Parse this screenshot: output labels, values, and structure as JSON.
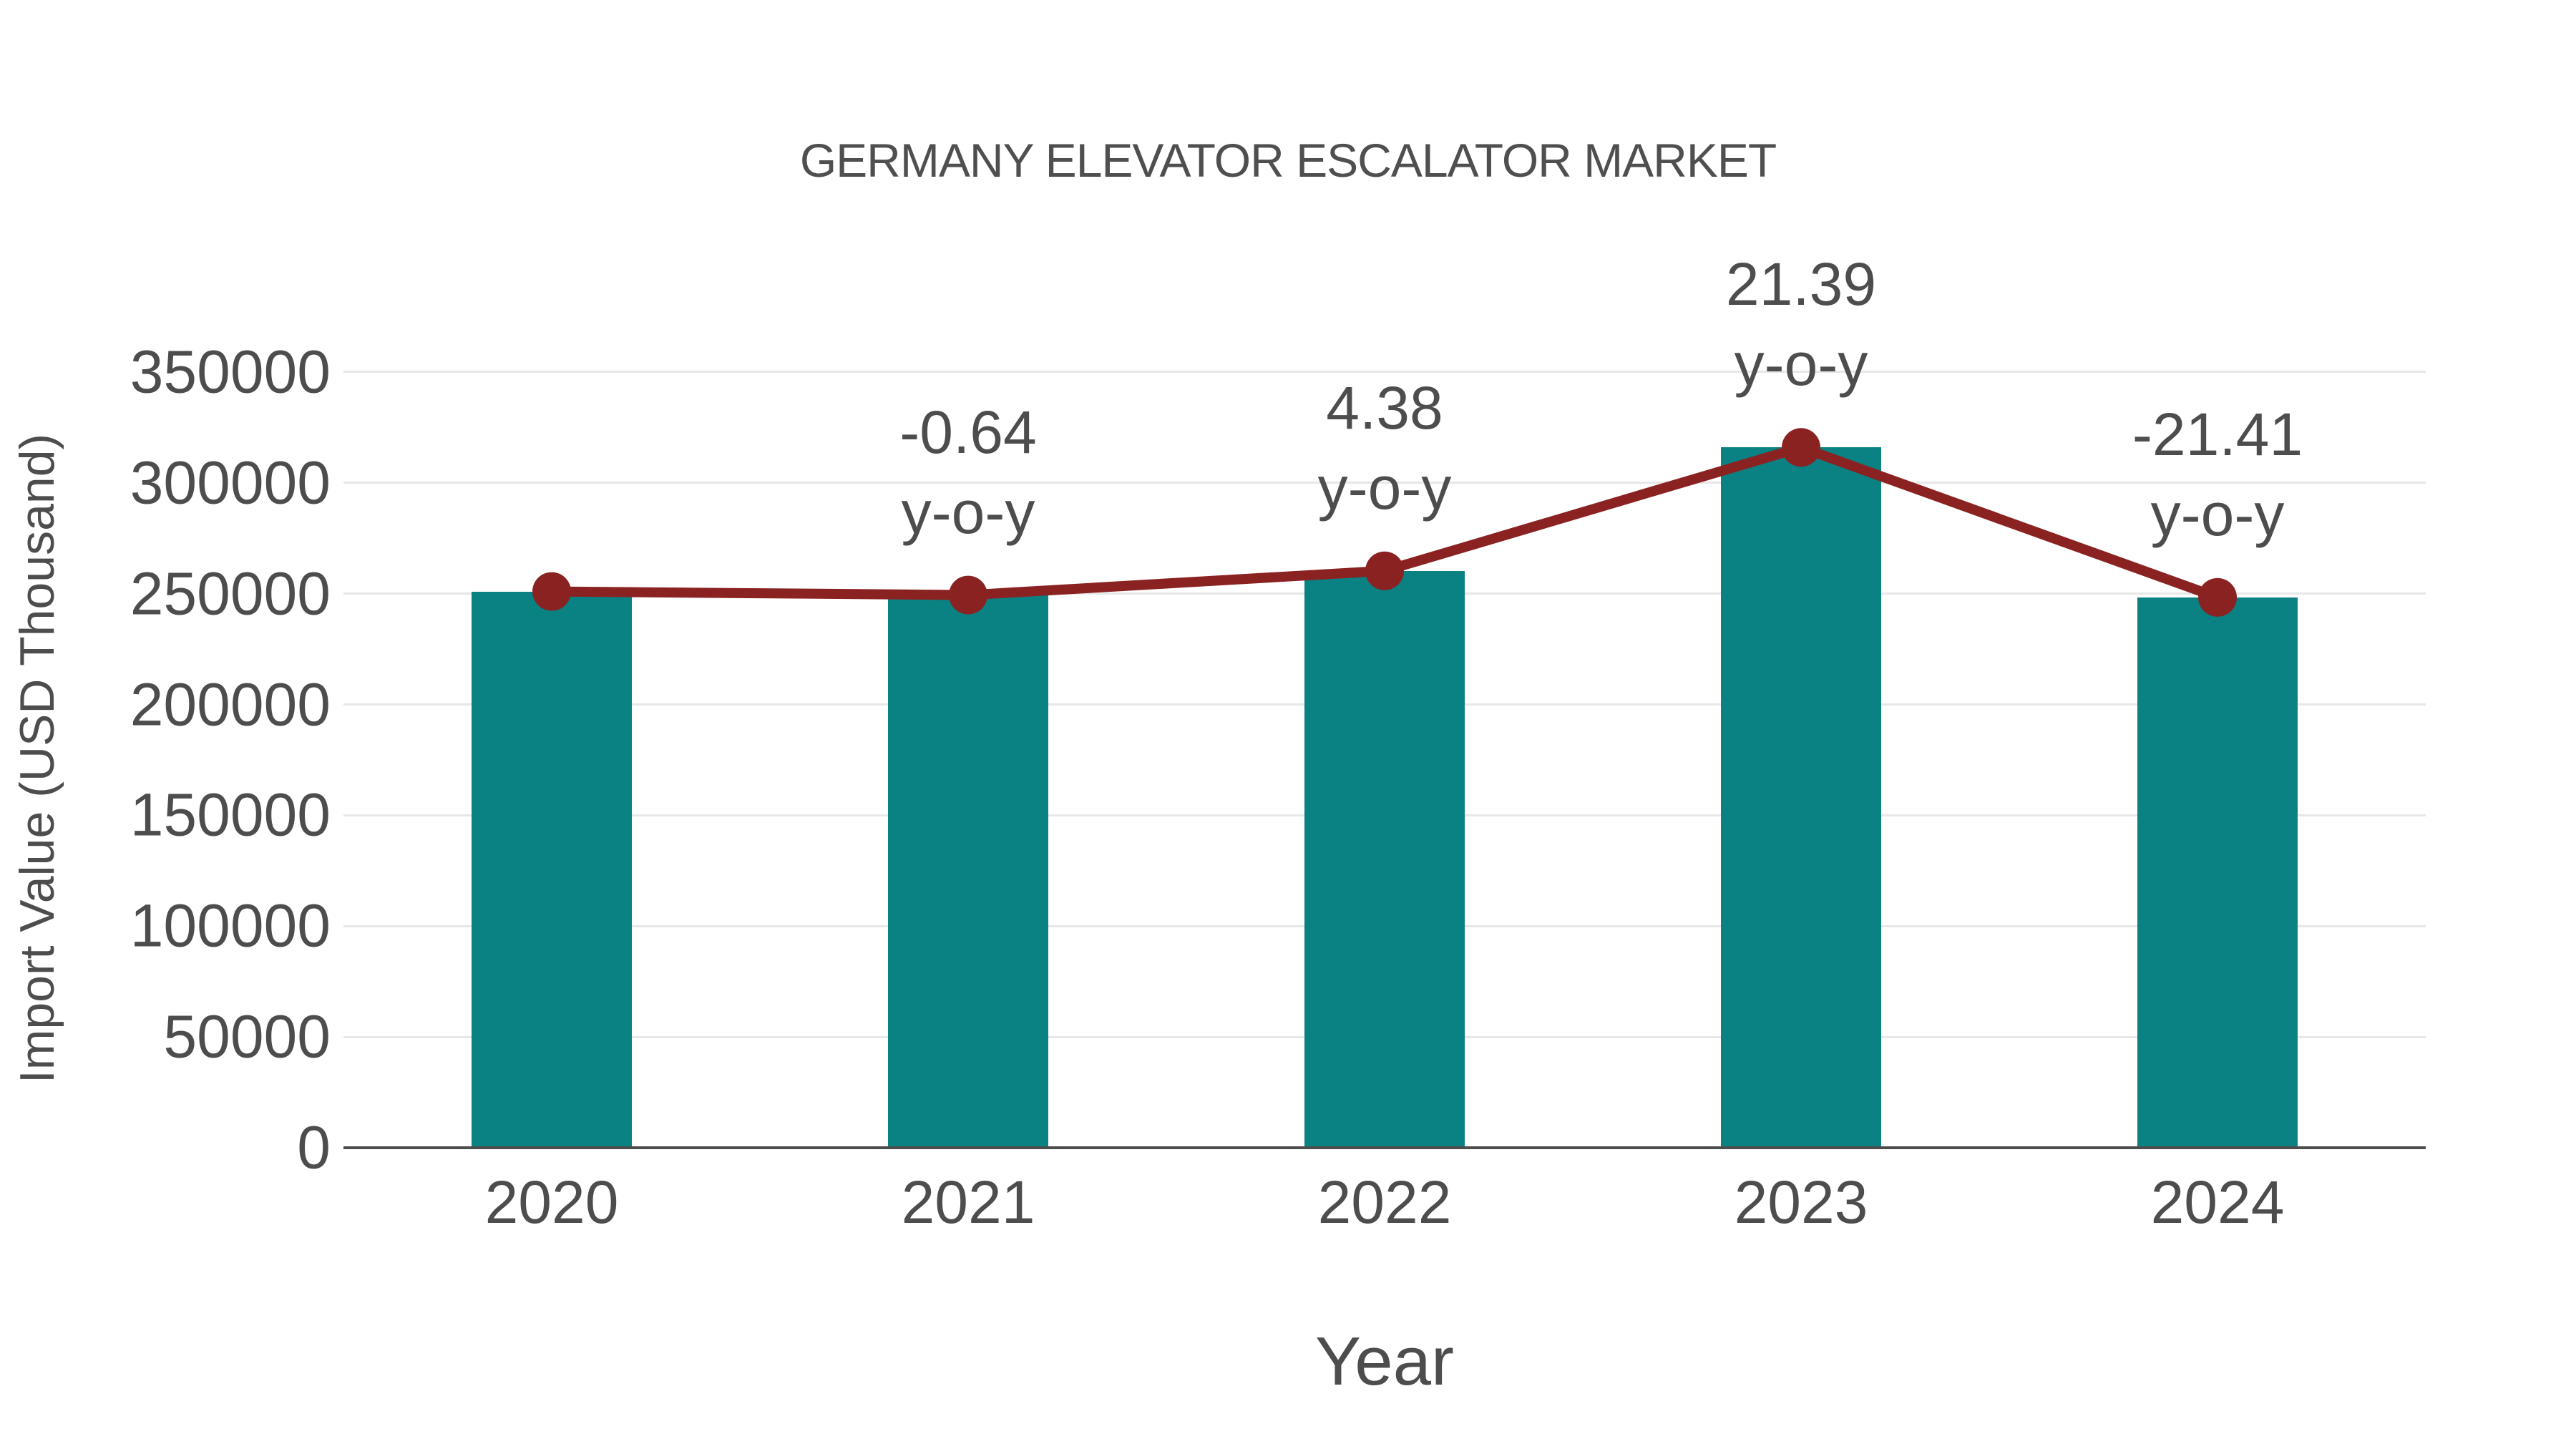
{
  "chart_data": {
    "type": "bar",
    "title": "GERMANY ELEVATOR ESCALATOR MARKET",
    "xlabel": "Year",
    "ylabel": "Import Value (USD Thousand)",
    "categories": [
      "2020",
      "2021",
      "2022",
      "2023",
      "2024"
    ],
    "series": [
      {
        "name": "Import Value (USD Thousand)",
        "type": "bar",
        "values": [
          251000,
          249394,
          260318,
          316000,
          248344
        ]
      },
      {
        "name": "Import Value trend",
        "type": "line",
        "values": [
          251000,
          249394,
          260318,
          316000,
          248344
        ]
      }
    ],
    "annotations": [
      {
        "category": "2021",
        "value_label": "-0.64",
        "unit_label": "y-o-y"
      },
      {
        "category": "2022",
        "value_label": "4.38",
        "unit_label": "y-o-y"
      },
      {
        "category": "2023",
        "value_label": "21.39",
        "unit_label": "y-o-y"
      },
      {
        "category": "2024",
        "value_label": "-21.41",
        "unit_label": "y-o-y"
      }
    ],
    "ylim": [
      0,
      350000
    ],
    "yticks": [
      0,
      50000,
      100000,
      150000,
      200000,
      250000,
      300000,
      350000
    ],
    "grid": "horizontal",
    "legend": "none"
  },
  "colors": {
    "bar": "#0a8183",
    "line": "#8b2222",
    "marker": "#8b2222",
    "text": "#4d4d4d",
    "grid": "#e7e7e7",
    "axis": "#4d4d4d",
    "background": "#ffffff"
  }
}
